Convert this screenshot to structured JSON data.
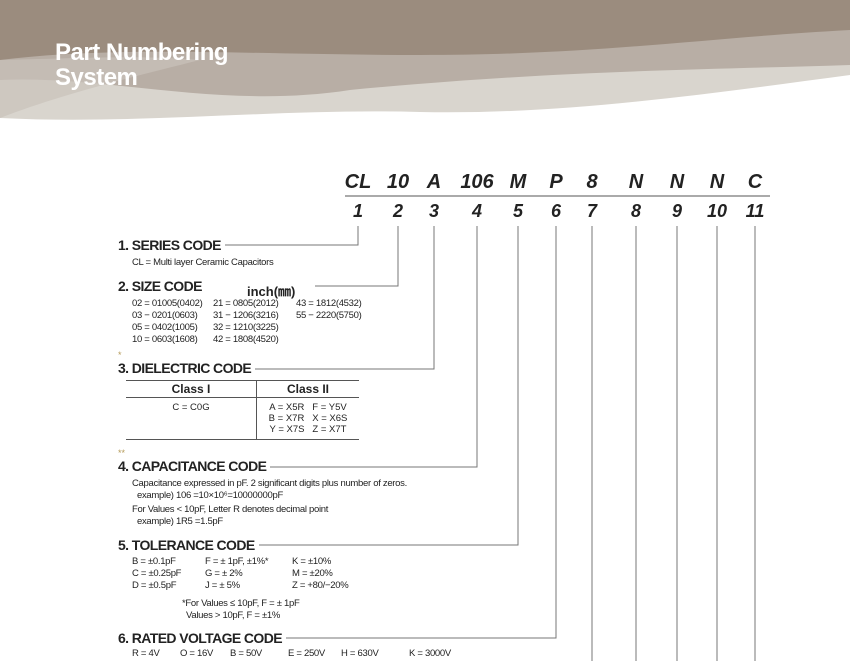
{
  "header": {
    "title_line1": "Part Numbering",
    "title_line2": "System",
    "colors": {
      "dark": "#9b8c7e",
      "mid": "#b6aba2",
      "light": "#d9d5ce"
    }
  },
  "codes": [
    "CL",
    "10",
    "A",
    "106",
    "M",
    "P",
    "8",
    "N",
    "N",
    "N",
    "C"
  ],
  "positions": [
    "1",
    "2",
    "3",
    "4",
    "5",
    "6",
    "7",
    "8",
    "9",
    "10",
    "11"
  ],
  "series": {
    "heading": "1. SERIES CODE",
    "desc": "CL = Multi layer Ceramic Capacitors"
  },
  "size": {
    "heading": "2. SIZE CODE",
    "unit": "inch(㎜)",
    "rows": [
      [
        "02 = 01005(0402)",
        "21 = 0805(2012)",
        "43 = 1812(4532)"
      ],
      [
        "03 − 0201(0603)",
        "31 − 1206(3216)",
        "55 − 2220(5750)"
      ],
      [
        "05 = 0402(1005)",
        "32 = 1210(3225)",
        ""
      ],
      [
        "10 = 0603(1608)",
        "42 = 1808(4520)",
        ""
      ]
    ]
  },
  "dielectric": {
    "star": "*",
    "heading": "3. DIELECTRIC CODE",
    "class1_header": "Class I",
    "class2_header": "Class II",
    "class1": "C = C0G",
    "class2": [
      "A = X5R   F = Y5V",
      "B = X7R   X = X6S",
      "Y = X7S   Z = X7T"
    ]
  },
  "capacitance": {
    "star": "**",
    "heading": "4. CAPACITANCE CODE",
    "lines": [
      "Capacitance expressed in pF. 2 significant digits plus number of zeros.",
      "example) 106 =10×10⁶=10000000pF",
      "For Values < 10pF, Letter R denotes decimal point",
      "example) 1R5 =1.5pF"
    ]
  },
  "tolerance": {
    "heading": "5. TOLERANCE CODE",
    "rows": [
      [
        "B = ±0.1pF",
        "F = ± 1pF, ±1%*",
        "K = ±10%"
      ],
      [
        "C = ±0.25pF",
        "G = ± 2%",
        "M = ±20%"
      ],
      [
        "D = ±0.5pF",
        "J = ± 5%",
        "Z = +80/−20%"
      ]
    ],
    "notes": [
      "*For Values ≤  10pF, F = ± 1pF",
      "Values > 10pF, F = ±1%"
    ]
  },
  "voltage": {
    "heading": "6. RATED VOLTAGE CODE",
    "row": [
      "R = 4V",
      "O = 16V",
      "B = 50V",
      "E = 250V",
      "H = 630V",
      "K = 3000V"
    ]
  }
}
